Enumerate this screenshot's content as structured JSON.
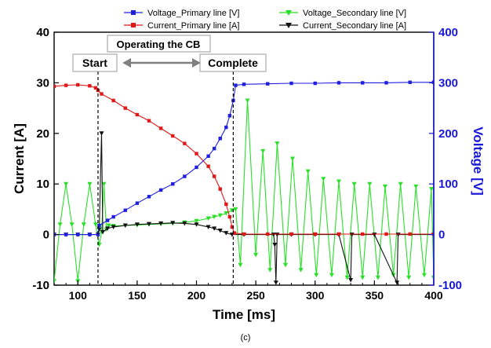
{
  "figure": {
    "caption": "(c)"
  },
  "chart_data": {
    "type": "line",
    "xlabel": "Time [ms]",
    "ylabel_left": "Current [A]",
    "ylabel_right": "Voltage [V]",
    "xlim": [
      80,
      400
    ],
    "ylim_left": [
      -10,
      40
    ],
    "ylim_right": [
      -100,
      400
    ],
    "xticks": [
      100,
      150,
      200,
      250,
      300,
      350,
      400
    ],
    "yticks_left": [
      -10,
      0,
      10,
      20,
      30,
      40
    ],
    "yticks_right": [
      -100,
      0,
      100,
      200,
      300,
      400
    ],
    "grid": false,
    "legend_position": "top",
    "colors": {
      "voltage_primary": "#1f1fe0",
      "current_primary": "#e01818",
      "voltage_secondary": "#28e028",
      "current_secondary": "#111111",
      "right_axis": "#1818d8"
    },
    "annotations": {
      "operating_label": "Operating the CB",
      "start_label": "Start",
      "complete_label": "Complete",
      "start_x": 117,
      "complete_x": 231
    },
    "series": [
      {
        "name": "Voltage_Primary line [V]",
        "axis": "right",
        "color": "#1f1fe0",
        "marker": "square",
        "points": [
          [
            80,
            0
          ],
          [
            90,
            0
          ],
          [
            100,
            0
          ],
          [
            110,
            0
          ],
          [
            117,
            0
          ],
          [
            118,
            18
          ],
          [
            125,
            28
          ],
          [
            130,
            35
          ],
          [
            140,
            48
          ],
          [
            150,
            62
          ],
          [
            160,
            75
          ],
          [
            170,
            88
          ],
          [
            180,
            100
          ],
          [
            190,
            115
          ],
          [
            200,
            133
          ],
          [
            210,
            155
          ],
          [
            215,
            170
          ],
          [
            220,
            190
          ],
          [
            225,
            212
          ],
          [
            228,
            235
          ],
          [
            231,
            265
          ],
          [
            233,
            295
          ],
          [
            240,
            297
          ],
          [
            260,
            298
          ],
          [
            280,
            299
          ],
          [
            300,
            299
          ],
          [
            320,
            300
          ],
          [
            340,
            300
          ],
          [
            360,
            300
          ],
          [
            380,
            301
          ],
          [
            400,
            301
          ]
        ]
      },
      {
        "name": "Current_Primary line [A]",
        "axis": "left",
        "color": "#e01818",
        "marker": "square",
        "points": [
          [
            80,
            29.3
          ],
          [
            90,
            29.5
          ],
          [
            100,
            29.6
          ],
          [
            110,
            29.4
          ],
          [
            115,
            29.0
          ],
          [
            117,
            28.5
          ],
          [
            120,
            27.8
          ],
          [
            130,
            26.5
          ],
          [
            140,
            25.0
          ],
          [
            150,
            23.7
          ],
          [
            160,
            22.5
          ],
          [
            170,
            21.0
          ],
          [
            180,
            19.5
          ],
          [
            190,
            18.0
          ],
          [
            200,
            16.0
          ],
          [
            210,
            13.5
          ],
          [
            215,
            11.5
          ],
          [
            220,
            9.0
          ],
          [
            225,
            6.0
          ],
          [
            228,
            3.5
          ],
          [
            230,
            1.5
          ],
          [
            232,
            0.3
          ],
          [
            240,
            0.1
          ],
          [
            260,
            0.1
          ],
          [
            280,
            0.1
          ],
          [
            300,
            0.1
          ],
          [
            320,
            0.1
          ],
          [
            340,
            0.1
          ],
          [
            360,
            0.1
          ],
          [
            380,
            0.1
          ],
          [
            400,
            0.1
          ]
        ]
      },
      {
        "name": "Voltage_Secondary line [V]",
        "axis": "right",
        "color": "#28e028",
        "marker": "triangle-down",
        "points": [
          [
            80,
            -92
          ],
          [
            85,
            20
          ],
          [
            90,
            100
          ],
          [
            95,
            20
          ],
          [
            100,
            -92
          ],
          [
            105,
            20
          ],
          [
            110,
            100
          ],
          [
            115,
            20
          ],
          [
            118,
            -20
          ],
          [
            120,
            5
          ],
          [
            122,
            100
          ],
          [
            124,
            10
          ],
          [
            126,
            18
          ],
          [
            130,
            17
          ],
          [
            140,
            18
          ],
          [
            150,
            19
          ],
          [
            160,
            20
          ],
          [
            170,
            21
          ],
          [
            180,
            22
          ],
          [
            190,
            24
          ],
          [
            200,
            27
          ],
          [
            210,
            32
          ],
          [
            215,
            35
          ],
          [
            220,
            38
          ],
          [
            225,
            42
          ],
          [
            230,
            48
          ],
          [
            233,
            50
          ],
          [
            237,
            -60
          ],
          [
            243,
            265
          ],
          [
            250,
            -40
          ],
          [
            256,
            165
          ],
          [
            262,
            -70
          ],
          [
            268,
            180
          ],
          [
            275,
            -60
          ],
          [
            281,
            150
          ],
          [
            288,
            -70
          ],
          [
            294,
            125
          ],
          [
            301,
            -80
          ],
          [
            307,
            110
          ],
          [
            314,
            -80
          ],
          [
            320,
            105
          ],
          [
            327,
            -85
          ],
          [
            333,
            100
          ],
          [
            340,
            -85
          ],
          [
            346,
            100
          ],
          [
            353,
            -85
          ],
          [
            359,
            95
          ],
          [
            366,
            -80
          ],
          [
            372,
            100
          ],
          [
            379,
            -85
          ],
          [
            385,
            95
          ],
          [
            392,
            -80
          ],
          [
            398,
            90
          ],
          [
            400,
            -85
          ]
        ]
      },
      {
        "name": "Current_Secondary line [A]",
        "axis": "left",
        "color": "#111111",
        "marker": "triangle-down",
        "points": [
          [
            80,
            0
          ],
          [
            90,
            0
          ],
          [
            100,
            0
          ],
          [
            110,
            0
          ],
          [
            117,
            0
          ],
          [
            118,
            1.0
          ],
          [
            120,
            20.0
          ],
          [
            121,
            0.5
          ],
          [
            125,
            1.2
          ],
          [
            130,
            1.5
          ],
          [
            140,
            1.8
          ],
          [
            150,
            2.0
          ],
          [
            160,
            2.1
          ],
          [
            170,
            2.2
          ],
          [
            180,
            2.3
          ],
          [
            190,
            2.2
          ],
          [
            200,
            2.0
          ],
          [
            210,
            1.5
          ],
          [
            215,
            1.2
          ],
          [
            220,
            0.8
          ],
          [
            225,
            0.3
          ],
          [
            230,
            0
          ],
          [
            240,
            0
          ],
          [
            265,
            0
          ],
          [
            266,
            -2
          ],
          [
            267,
            -9.5
          ],
          [
            268,
            0
          ],
          [
            280,
            0
          ],
          [
            300,
            0
          ],
          [
            320,
            0
          ],
          [
            330,
            -9
          ],
          [
            331,
            0
          ],
          [
            350,
            0
          ],
          [
            369,
            -9.5
          ],
          [
            370,
            0
          ],
          [
            400,
            0
          ]
        ]
      }
    ]
  }
}
